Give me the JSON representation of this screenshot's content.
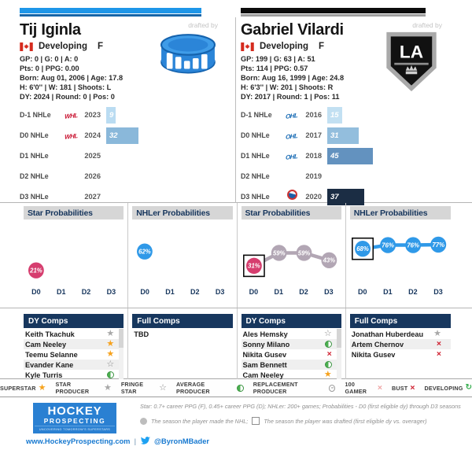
{
  "players": [
    {
      "name": "Tij Iginla",
      "flag": "canada",
      "status": "Developing",
      "position": "F",
      "stats": [
        "GP: 0 | G: 0 | A: 0",
        "Pts: 0 | PPG: 0.00",
        "Born: Aug 01, 2006 | Age: 17.8",
        "H: 6'0'' | W: 181 | Shoots: L",
        "DY: 2024 | Round: 0 | Pos: 0"
      ],
      "drafted_by_label": "drafted by",
      "team_logo": "puck-logo",
      "accent_bar": {
        "primary": "#1e96e8",
        "secondary": "#1565a8"
      },
      "nhle_rows": [
        {
          "label": "D-1 NHLe",
          "league": "WHL",
          "year": "2023",
          "value": 9,
          "bar_color": "#badcf2"
        },
        {
          "label": "D0 NHLe",
          "league": "WHL",
          "year": "2024",
          "value": 32,
          "bar_color": "#8ab8da"
        },
        {
          "label": "D1 NHLe",
          "league": "",
          "year": "2025",
          "value": null,
          "bar_color": ""
        },
        {
          "label": "D2 NHLe",
          "league": "",
          "year": "2026",
          "value": null,
          "bar_color": ""
        },
        {
          "label": "D3 NHLe",
          "league": "",
          "year": "2027",
          "value": null,
          "bar_color": ""
        }
      ],
      "star_probabilities": {
        "title": "Star Probabilities",
        "axis": [
          "D0",
          "D1",
          "D2",
          "D3"
        ],
        "points": [
          {
            "pct": 21,
            "color": "#d63e6f",
            "boxed": false
          },
          null,
          null,
          null
        ]
      },
      "nhler_probabilities": {
        "title": "NHLer Probabilities",
        "axis": [
          "D0",
          "D1",
          "D2",
          "D3"
        ],
        "points": [
          {
            "pct": 62,
            "color": "#2f99e8",
            "boxed": false
          },
          null,
          null,
          null
        ]
      },
      "dy_comps": {
        "title": "DY Comps",
        "rows": [
          {
            "name": "Keith Tkachuk",
            "icon": "star-gray"
          },
          {
            "name": "Cam Neeley",
            "icon": "star-orange"
          },
          {
            "name": "Teemu Selanne",
            "icon": "star-orange"
          },
          {
            "name": "Evander Kane",
            "icon": "star-outline"
          },
          {
            "name": "Kyle Turris",
            "icon": "half-circle-green"
          }
        ]
      },
      "full_comps": {
        "title": "Full Comps",
        "rows": [
          {
            "name": "TBD",
            "icon": null
          }
        ]
      }
    },
    {
      "name": "Gabriel Vilardi",
      "flag": "canada",
      "status": "Developing",
      "position": "F",
      "stats": [
        "GP: 199 | G: 63 | A: 51",
        "Pts: 114 | PPG: 0.57",
        "Born: Aug 16, 1999 | Age: 24.8",
        "H: 6'3'' | W: 201 | Shoots: R",
        "DY: 2017 | Round: 1 | Pos: 11"
      ],
      "drafted_by_label": "drafted by",
      "team_logo": "la-kings-logo",
      "accent_bar": {
        "primary": "#0c0c0c",
        "secondary": "#9e9e9e"
      },
      "nhle_rows": [
        {
          "label": "D-1 NHLe",
          "league": "OHL",
          "year": "2016",
          "value": 15,
          "bar_color": "#c2e0f2"
        },
        {
          "label": "D0 NHLe",
          "league": "OHL",
          "year": "2017",
          "value": 31,
          "bar_color": "#93bedd"
        },
        {
          "label": "D1 NHLe",
          "league": "OHL",
          "year": "2018",
          "value": 45,
          "bar_color": "#6392bf"
        },
        {
          "label": "D2 NHLe",
          "league": "",
          "year": "2019",
          "value": null,
          "bar_color": ""
        },
        {
          "label": "D3 NHLe",
          "league": "NHL",
          "year": "2020",
          "value": 37,
          "bar_color": "#1b2d44"
        }
      ],
      "star_probabilities": {
        "title": "Star Probabilities",
        "axis": [
          "D0",
          "D1",
          "D2",
          "D3"
        ],
        "points": [
          {
            "pct": 31,
            "color": "#d63e6f",
            "boxed": true
          },
          {
            "pct": 59,
            "color": "#b2a6b4",
            "boxed": false
          },
          {
            "pct": 59,
            "color": "#b2a6b4",
            "boxed": false
          },
          {
            "pct": 43,
            "color": "#b2a6b4",
            "boxed": false
          }
        ]
      },
      "nhler_probabilities": {
        "title": "NHLer Probabilities",
        "axis": [
          "D0",
          "D1",
          "D2",
          "D3"
        ],
        "points": [
          {
            "pct": 68,
            "color": "#2f99e8",
            "boxed": true
          },
          {
            "pct": 76,
            "color": "#2f99e8",
            "boxed": false
          },
          {
            "pct": 76,
            "color": "#2f99e8",
            "boxed": false
          },
          {
            "pct": 77,
            "color": "#2f99e8",
            "boxed": false
          }
        ]
      },
      "dy_comps": {
        "title": "DY Comps",
        "rows": [
          {
            "name": "Ales Hemsky",
            "icon": "star-outline"
          },
          {
            "name": "Sonny Milano",
            "icon": "half-circle-green"
          },
          {
            "name": "Nikita Gusev",
            "icon": "x-red"
          },
          {
            "name": "Sam Bennett",
            "icon": "half-circle-green"
          },
          {
            "name": "Cam Neeley",
            "icon": "star-orange"
          }
        ]
      },
      "full_comps": {
        "title": "Full Comps",
        "rows": [
          {
            "name": "Jonathan Huberdeau",
            "icon": "star-gray"
          },
          {
            "name": "Artem Chernov",
            "icon": "x-red"
          },
          {
            "name": "Nikita Gusev",
            "icon": "x-red"
          }
        ]
      }
    }
  ],
  "legend": {
    "items": [
      {
        "label": "SUPERSTAR",
        "icon": "star-orange"
      },
      {
        "label": "STAR PRODUCER",
        "icon": "star-gray"
      },
      {
        "label": "FRINGE STAR",
        "icon": "star-outline"
      },
      {
        "label": "AVERAGE PRODUCER",
        "icon": "half-circle-green"
      },
      {
        "label": "REPLACEMENT PRODUCER",
        "icon": "circle-minus"
      },
      {
        "label": "100 GAMER",
        "icon": "x-light"
      },
      {
        "label": "BUST",
        "icon": "x-red"
      },
      {
        "label": "DEVELOPING",
        "icon": "developing"
      }
    ]
  },
  "footer": {
    "note1": "Star: 0.7+ career PPG (F), 0.45+ career PPG (D); NHLer: 200+ games; Probabilities - D0 (first eligible dy) through D3 seasons",
    "made_nhl_note": "The season the player made the NHL;",
    "drafted_note": "The season the player was drafted (first eligible dy vs. overager)",
    "brand": {
      "line1": "HOCKEY",
      "line2": "PROSPECTING",
      "tagline": "UNCOVERING TOMORROW'S SUPERSTARS"
    },
    "website": "www.HockeyProspecting.com",
    "separator": "|",
    "twitter_handle": "@ByronMBader"
  }
}
